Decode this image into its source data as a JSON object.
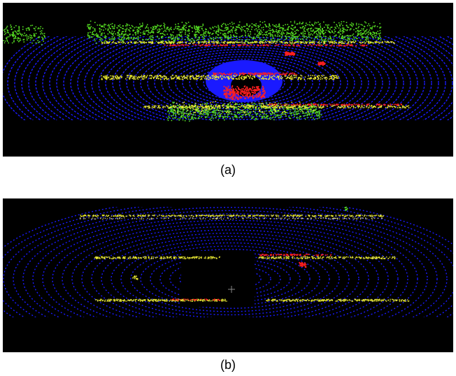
{
  "figure": {
    "panels": [
      {
        "caption": "(a)",
        "content": "lidar-point-cloud-dense",
        "colors": {
          "background": "#000000",
          "ground_rings": "#1a1aff",
          "vegetation": "#55dd22",
          "yellow_points": "#e8e833",
          "red_points": "#ff2020"
        }
      },
      {
        "caption": "(b)",
        "content": "lidar-point-cloud-sparse",
        "colors": {
          "background": "#000000",
          "ground_rings": "#1a1aff",
          "vegetation": "#55dd22",
          "yellow_points": "#e8e833",
          "red_points": "#ff2020",
          "origin_marker": "#888888"
        }
      }
    ]
  }
}
